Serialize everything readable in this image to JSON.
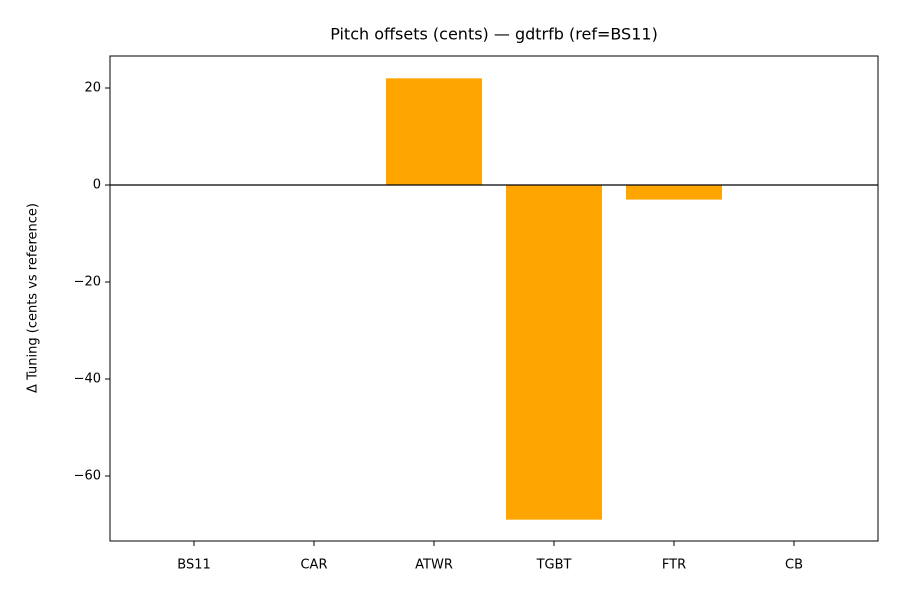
{
  "chart_data": {
    "type": "bar",
    "title": "Pitch offsets (cents) — gdtrfb (ref=BS11)",
    "y_label": "Δ Tuning (cents vs reference)",
    "categories": [
      "BS11",
      "CAR",
      "ATWR",
      "TGBT",
      "FTR",
      "CB"
    ],
    "values": [
      0,
      0,
      22,
      -69,
      -3,
      0
    ],
    "color": "#ffa500",
    "ylim": [
      -73.4,
      26.6
    ],
    "yticks": [
      {
        "value": -60,
        "label": "−60"
      },
      {
        "value": -40,
        "label": "−40"
      },
      {
        "value": -20,
        "label": "−20"
      },
      0,
      20
    ],
    "hline": 0,
    "grid": false
  }
}
